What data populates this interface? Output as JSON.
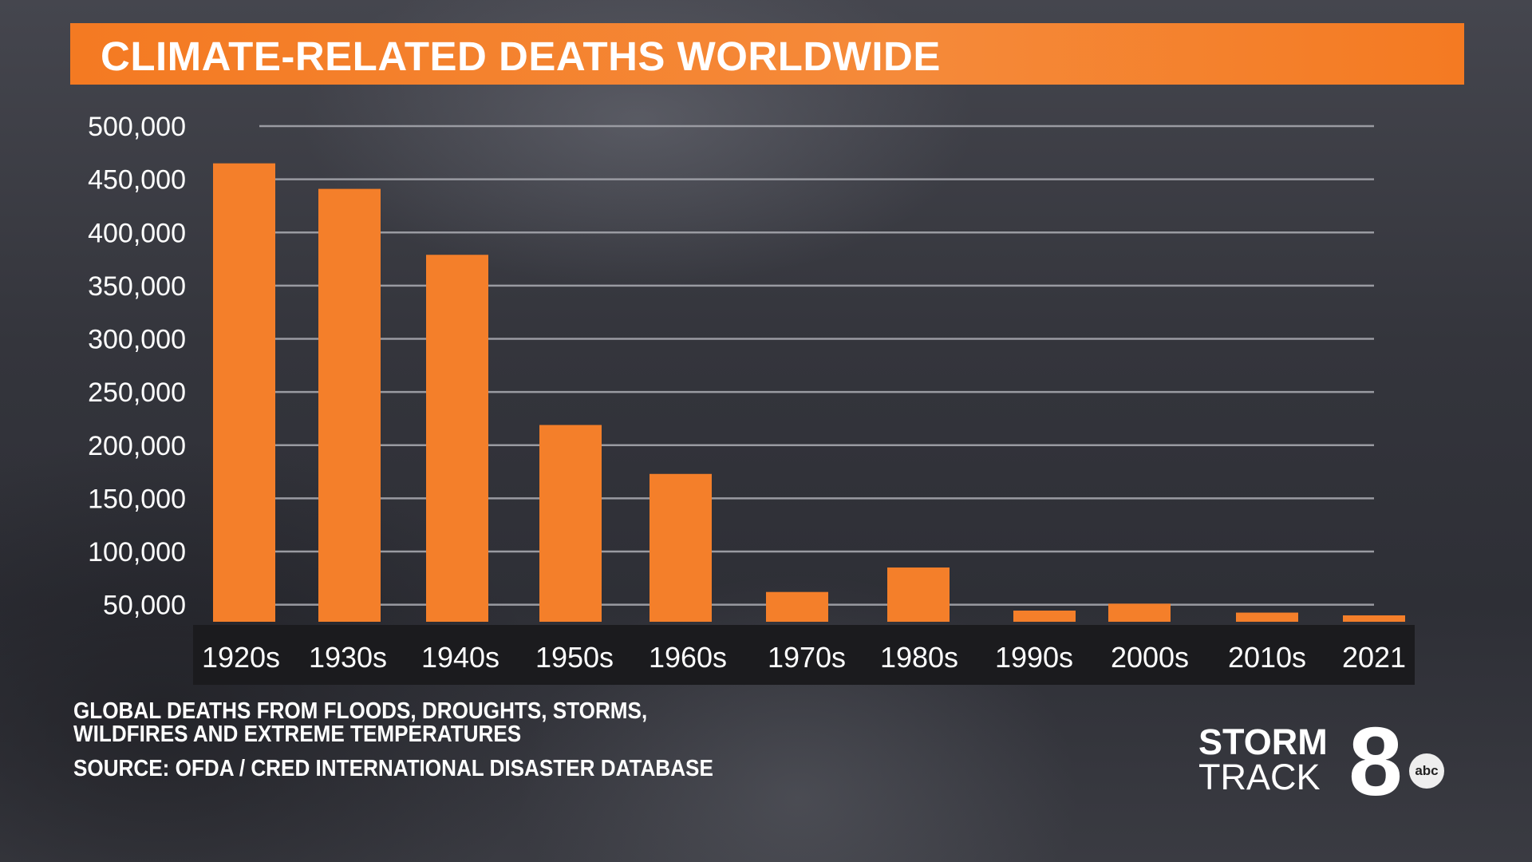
{
  "chart_data": {
    "type": "bar",
    "title": "CLIMATE-RELATED DEATHS WORLDWIDE",
    "categories": [
      "1920s",
      "1930s",
      "1940s",
      "1950s",
      "1960s",
      "1970s",
      "1980s",
      "1990s",
      "2000s",
      "2010s",
      "2021"
    ],
    "values": [
      465000,
      441000,
      379000,
      219000,
      173000,
      62000,
      85000,
      44500,
      51000,
      42600,
      40000
    ],
    "yticks": [
      "500,000",
      "450,000",
      "400,000",
      "350,000",
      "300,000",
      "250,000",
      "200,000",
      "150,000",
      "100,000",
      "50,000"
    ],
    "ytick_values": [
      500000,
      450000,
      400000,
      350000,
      300000,
      250000,
      200000,
      150000,
      100000,
      50000
    ],
    "ylim": [
      34000,
      500000
    ],
    "grid": true,
    "xlabel": "",
    "ylabel": "",
    "bar_color": "#f47f2a",
    "title_bar_color": "#f47a22"
  },
  "notes": {
    "line1": "GLOBAL DEATHS FROM FLOODS, DROUGHTS, STORMS,",
    "line2": "WILDFIRES AND EXTREME TEMPERATURES",
    "source": "SOURCE: OFDA / CRED INTERNATIONAL DISASTER DATABASE"
  },
  "logo": {
    "word1": "STORM",
    "word2": "TRACK",
    "number": "8",
    "network": "abc"
  }
}
